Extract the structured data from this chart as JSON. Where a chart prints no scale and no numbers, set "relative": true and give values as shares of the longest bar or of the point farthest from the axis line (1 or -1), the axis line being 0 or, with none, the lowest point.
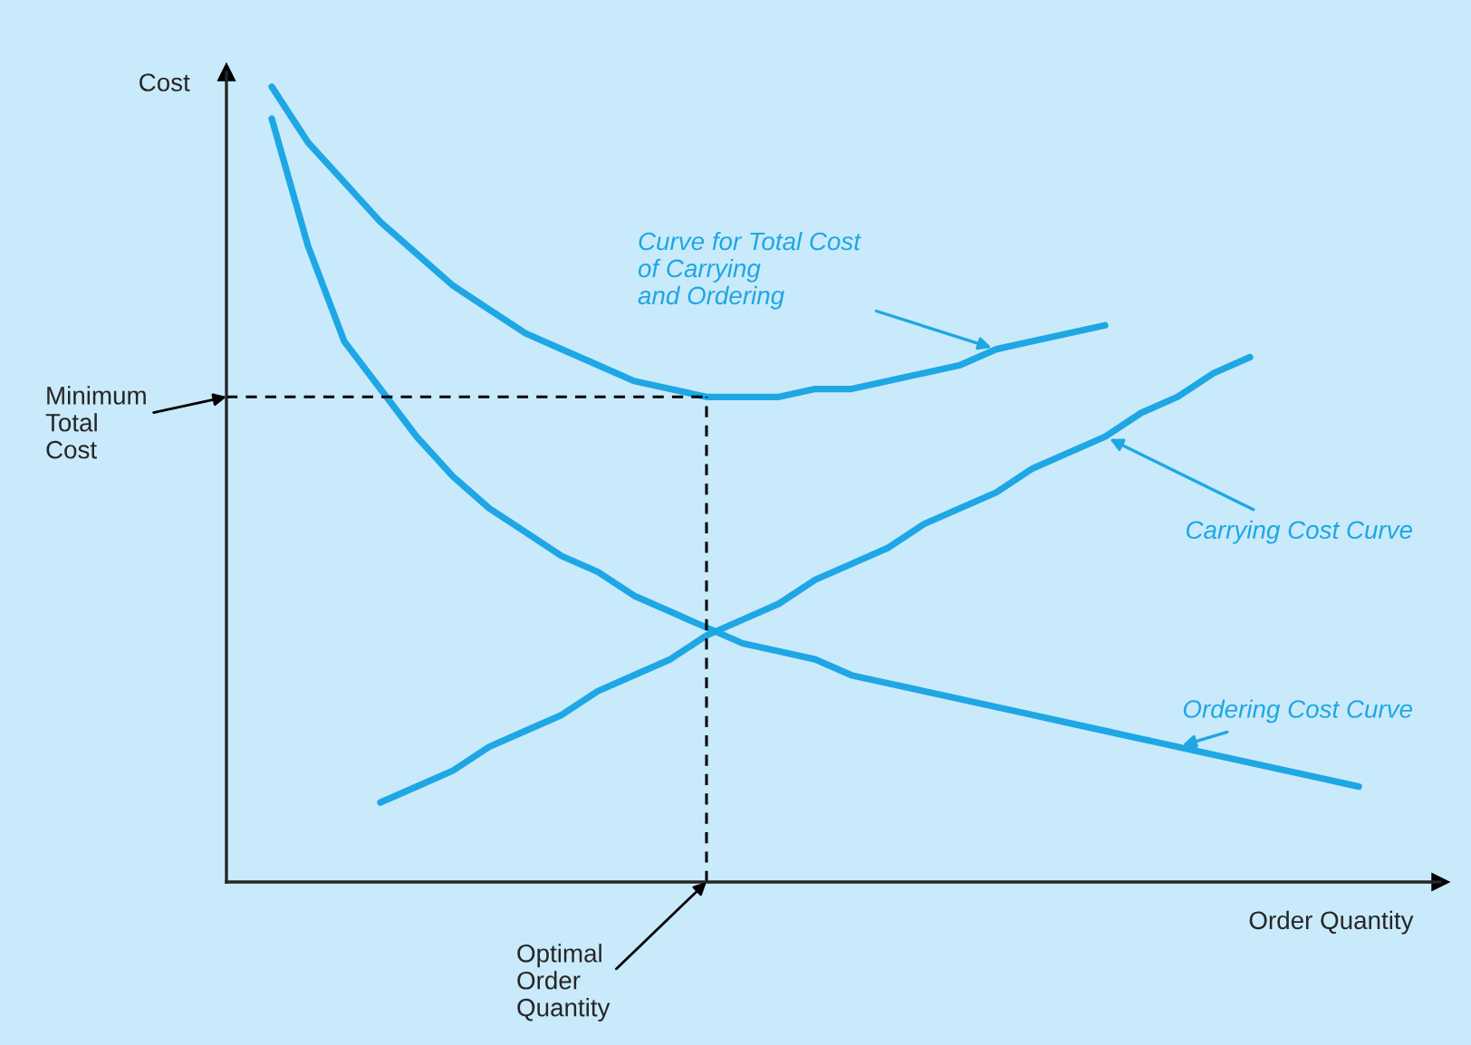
{
  "chart_data": {
    "type": "line",
    "relative": true,
    "ylabel": "Cost",
    "xlabel": "Order Quantity",
    "categories": [
      null,
      null,
      null,
      null,
      null,
      null,
      null,
      null,
      null,
      null,
      null,
      null,
      null,
      null,
      null,
      null,
      null,
      null,
      null,
      null,
      null,
      null,
      null,
      null,
      null,
      null,
      null,
      null,
      null,
      null,
      null
    ],
    "series": [
      {
        "name": "Curve for Total Cost\nof Carrying\nand Ordering",
        "color": "#1ea7e4",
        "values": [
          1.0,
          0.93,
          0.88,
          0.83,
          0.79,
          0.75,
          0.72,
          0.69,
          0.67,
          0.65,
          0.63,
          0.62,
          0.61,
          0.61,
          0.61,
          0.62,
          0.62,
          0.63,
          0.64,
          0.65,
          0.67,
          0.68,
          0.69,
          0.7,
          null,
          null,
          null,
          null,
          null,
          null,
          null
        ]
      },
      {
        "name": "Carrying Cost Curve",
        "color": "#1ea7e4",
        "values": [
          null,
          null,
          null,
          0.1,
          0.12,
          0.14,
          0.17,
          0.19,
          0.21,
          0.24,
          0.26,
          0.28,
          0.31,
          0.33,
          0.35,
          0.38,
          0.4,
          0.42,
          0.45,
          0.47,
          0.49,
          0.52,
          0.54,
          0.56,
          0.59,
          0.61,
          0.64,
          0.66,
          null,
          null,
          null
        ]
      },
      {
        "name": "Ordering Cost Curve",
        "color": "#1ea7e4",
        "values": [
          0.96,
          0.8,
          0.68,
          0.62,
          0.56,
          0.51,
          0.47,
          0.44,
          0.41,
          0.39,
          0.36,
          0.34,
          0.32,
          0.3,
          0.29,
          0.28,
          0.26,
          0.25,
          0.24,
          0.23,
          0.22,
          0.21,
          0.2,
          0.19,
          0.18,
          0.17,
          0.16,
          0.15,
          0.14,
          0.13,
          0.12
        ]
      }
    ],
    "ref_lines": [
      {
        "axis": "y",
        "value": 0.61,
        "label": "Minimum\nTotal\nCost",
        "color": "#000000",
        "line_style": "dashed"
      }
    ],
    "annotations": [
      "Optimal\nOrder\nQuantity"
    ]
  }
}
